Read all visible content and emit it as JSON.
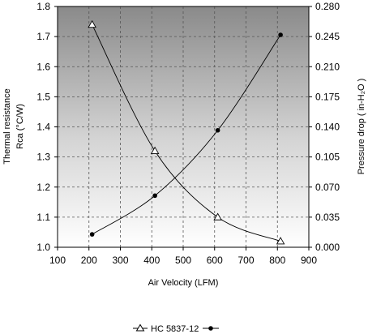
{
  "chart_data": {
    "type": "line",
    "title": "",
    "xlabel": "Air Velocity (LFM)",
    "ylabel_left_line1": "Thermal resistance",
    "ylabel_left_line2": "Rca (°C/W)",
    "ylabel_right": "Pressure drop ( in-H₂O )",
    "xlim": [
      100,
      900
    ],
    "ylim_left": [
      1.0,
      1.8
    ],
    "ylim_right": [
      0.0,
      0.28
    ],
    "x_ticks": [
      "100",
      "200",
      "300",
      "400",
      "500",
      "600",
      "700",
      "800",
      "900"
    ],
    "y_left_ticks": [
      "1.0",
      "1.1",
      "1.2",
      "1.3",
      "1.4",
      "1.5",
      "1.6",
      "1.7",
      "1.8"
    ],
    "y_right_ticks": [
      "0.000",
      "0.035",
      "0.070",
      "0.105",
      "0.140",
      "0.175",
      "0.210",
      "0.245",
      "0.280"
    ],
    "grid": true,
    "background": "vertical-gradient-gray",
    "legend_position": "bottom-center",
    "legend_text": "HC 5837-12",
    "series": [
      {
        "axis": "left",
        "marker": "open-triangle",
        "color": "#000000",
        "x": [
          210,
          410,
          610,
          810
        ],
        "y": [
          1.74,
          1.32,
          1.1,
          1.02
        ]
      },
      {
        "axis": "right",
        "marker": "filled-circle",
        "color": "#000000",
        "x": [
          210,
          410,
          610,
          810
        ],
        "y": [
          0.015,
          0.06,
          0.136,
          0.247
        ]
      }
    ]
  }
}
